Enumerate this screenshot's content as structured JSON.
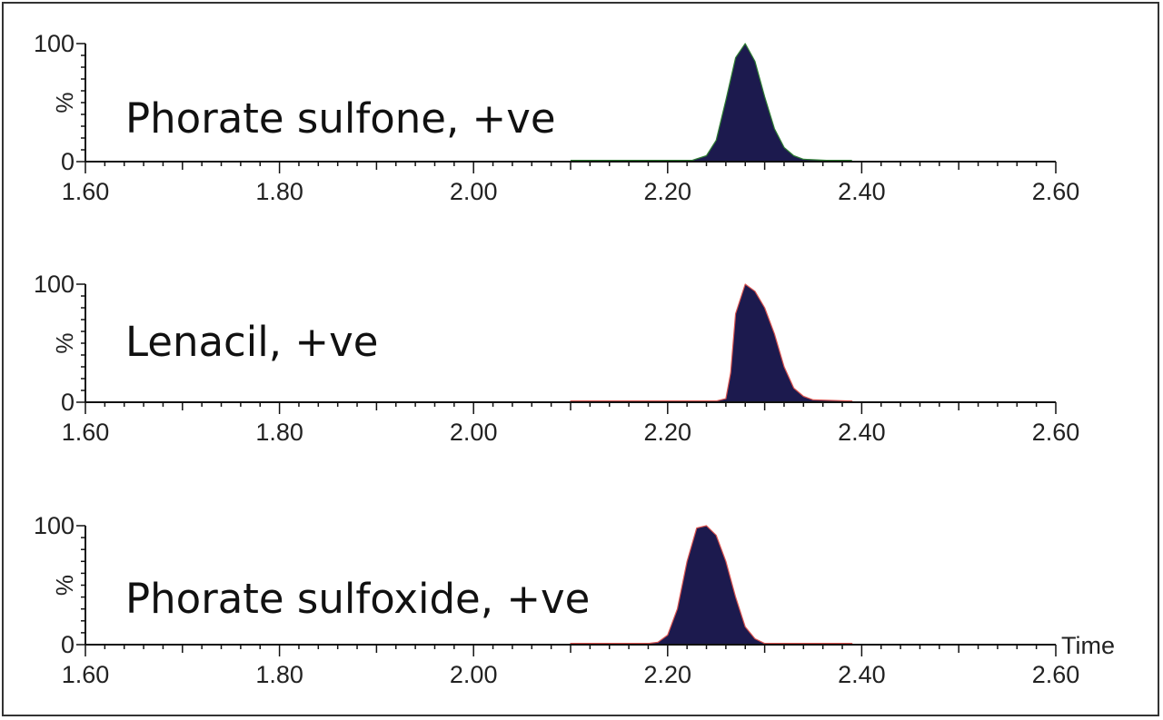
{
  "colors": {
    "peak_fill": "#1c1a4e",
    "axis": "#111111",
    "baseline_green": "#2e7d32",
    "baseline_red": "#d9534f"
  },
  "chart_data": [
    {
      "type": "area",
      "label": "Phorate sulfone, +ve",
      "ylabel": "%",
      "xlim": [
        1.6,
        2.6
      ],
      "ylim": [
        0,
        100
      ],
      "x_ticks": [
        "1.60",
        "1.80",
        "2.00",
        "2.20",
        "2.40",
        "2.60"
      ],
      "y_ticks": [
        "0",
        "100"
      ],
      "baseline_color": "#2e7d32",
      "x": [
        2.1,
        2.2,
        2.225,
        2.24,
        2.25,
        2.26,
        2.27,
        2.28,
        2.29,
        2.3,
        2.31,
        2.32,
        2.33,
        2.34,
        2.39
      ],
      "y": [
        0,
        0.5,
        1,
        5,
        18,
        52,
        88,
        100,
        85,
        55,
        28,
        12,
        5,
        2,
        0
      ]
    },
    {
      "type": "area",
      "label": "Lenacil, +ve",
      "ylabel": "%",
      "xlim": [
        1.6,
        2.6
      ],
      "ylim": [
        0,
        100
      ],
      "x_ticks": [
        "1.60",
        "1.80",
        "2.00",
        "2.20",
        "2.40",
        "2.60"
      ],
      "y_ticks": [
        "0",
        "100"
      ],
      "baseline_color": "#d9534f",
      "x": [
        2.1,
        2.16,
        2.17,
        2.25,
        2.26,
        2.265,
        2.27,
        2.28,
        2.29,
        2.3,
        2.31,
        2.32,
        2.33,
        2.34,
        2.35,
        2.39
      ],
      "y": [
        1,
        1,
        1,
        1,
        3,
        25,
        75,
        100,
        94,
        80,
        58,
        30,
        12,
        5,
        2,
        1
      ]
    },
    {
      "type": "area",
      "label": "Phorate sulfoxide, +ve",
      "ylabel": "%",
      "xlabel": "Time",
      "xlim": [
        1.6,
        2.6
      ],
      "ylim": [
        0,
        100
      ],
      "x_ticks": [
        "1.60",
        "1.80",
        "2.00",
        "2.20",
        "2.40",
        "2.60"
      ],
      "y_ticks": [
        "0",
        "100"
      ],
      "baseline_color": "#d9534f",
      "x": [
        2.1,
        2.18,
        2.19,
        2.2,
        2.21,
        2.22,
        2.23,
        2.24,
        2.25,
        2.26,
        2.27,
        2.28,
        2.29,
        2.3,
        2.39
      ],
      "y": [
        1,
        1,
        2,
        8,
        30,
        70,
        98,
        100,
        92,
        70,
        40,
        15,
        5,
        1,
        1
      ]
    }
  ]
}
